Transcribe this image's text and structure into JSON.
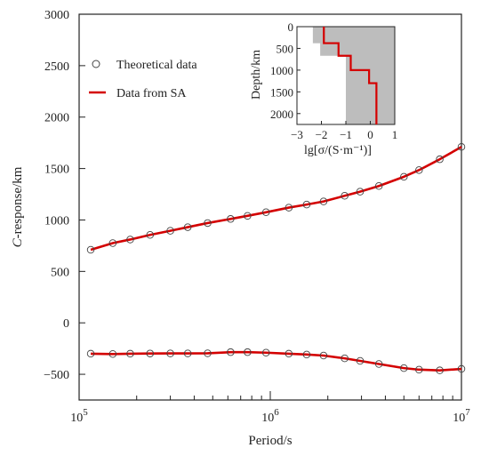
{
  "chart_data": [
    {
      "type": "line",
      "xlabel": "Period/s",
      "ylabel": "C-response/km",
      "xscale": "log",
      "xlim": [
        100000,
        10000000
      ],
      "ylim": [
        -750,
        3000
      ],
      "x_ticks": [
        {
          "value": 100000,
          "base": "10",
          "exp": "5"
        },
        {
          "value": 1000000,
          "base": "10",
          "exp": "6"
        },
        {
          "value": 10000000,
          "base": "10",
          "exp": "7"
        }
      ],
      "y_ticks": [
        -500,
        0,
        500,
        1000,
        1500,
        2000,
        2500,
        3000
      ],
      "y_tick_labels": [
        "−500",
        "0",
        "500",
        "1000",
        "1500",
        "2000",
        "2500",
        "3000"
      ],
      "legend": {
        "position": "top-left",
        "entries": [
          {
            "label": "Theoretical data",
            "marker": "open-circle"
          },
          {
            "label": "Data from SA",
            "marker": "red-line"
          }
        ]
      },
      "colors": {
        "sa_line": "#d40000",
        "markers": "#444444",
        "axis": "#222222"
      },
      "x": [
        115000,
        150000,
        185000,
        235000,
        300000,
        370000,
        470000,
        620000,
        760000,
        950000,
        1250000,
        1550000,
        1900000,
        2450000,
        2950000,
        3700000,
        5000000,
        6000000,
        7700000,
        10000000
      ],
      "series": [
        {
          "name": "Theoretical data",
          "kind": "markers",
          "part": "real",
          "values": [
            710,
            775,
            810,
            855,
            895,
            930,
            970,
            1010,
            1040,
            1075,
            1120,
            1150,
            1180,
            1235,
            1275,
            1330,
            1420,
            1485,
            1590,
            1710
          ]
        },
        {
          "name": "Data from SA",
          "kind": "line",
          "part": "real",
          "values": [
            710,
            775,
            810,
            855,
            895,
            930,
            970,
            1010,
            1040,
            1075,
            1120,
            1150,
            1180,
            1235,
            1275,
            1330,
            1420,
            1485,
            1590,
            1710
          ]
        },
        {
          "name": "Theoretical data",
          "kind": "markers",
          "part": "imaginary",
          "values": [
            -300,
            -303,
            -300,
            -298,
            -297,
            -297,
            -296,
            -285,
            -285,
            -290,
            -300,
            -308,
            -318,
            -345,
            -370,
            -400,
            -440,
            -455,
            -462,
            -448
          ]
        },
        {
          "name": "Data from SA",
          "kind": "line",
          "part": "imaginary",
          "values": [
            -300,
            -303,
            -300,
            -298,
            -297,
            -297,
            -296,
            -285,
            -285,
            -290,
            -300,
            -308,
            -318,
            -345,
            -370,
            -400,
            -440,
            -455,
            -462,
            -448
          ]
        }
      ]
    },
    {
      "type": "line",
      "inset": true,
      "xlabel": "lg[σ/(S·m⁻¹)]",
      "ylabel": "Depth/km",
      "xlim": [
        -3,
        1
      ],
      "ylim": [
        2250,
        0
      ],
      "x_ticks": [
        -3,
        -2,
        -1,
        0,
        1
      ],
      "x_tick_labels": [
        "−3",
        "−2",
        "−1",
        "0",
        "1"
      ],
      "y_ticks": [
        0,
        500,
        1000,
        1500,
        2000
      ],
      "y_tick_labels": [
        "0",
        "500",
        "1000",
        "1500",
        "2000"
      ],
      "colors": {
        "band": "#bdbdbd",
        "profile": "#d40000"
      },
      "band_left_edge": {
        "depth": [
          0,
          380,
          380,
          670,
          670,
          2250
        ],
        "lgsigma": [
          -2.35,
          -2.35,
          -2.05,
          -2.05,
          -1.0,
          -1.0
        ]
      },
      "profile": {
        "depth": [
          0,
          380,
          380,
          670,
          670,
          1000,
          1000,
          1300,
          1300,
          2250
        ],
        "lgsigma": [
          -1.9,
          -1.9,
          -1.3,
          -1.3,
          -0.8,
          -0.8,
          -0.05,
          -0.05,
          0.25,
          0.25
        ]
      }
    }
  ]
}
